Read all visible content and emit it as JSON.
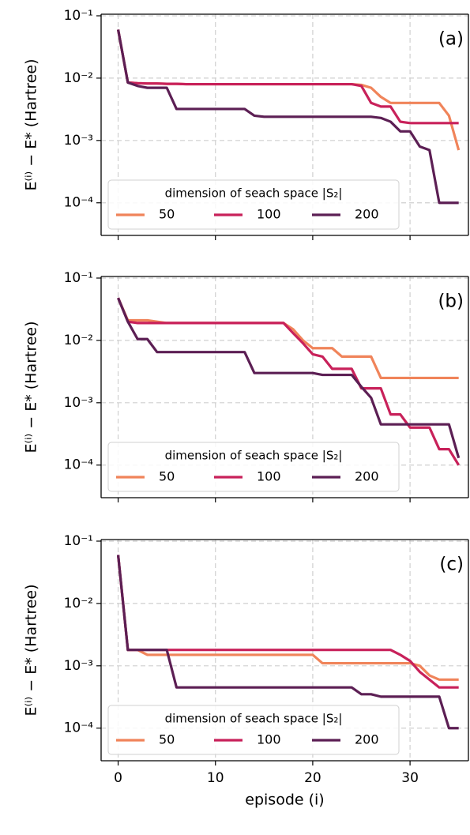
{
  "chart_data": [
    {
      "type": "line",
      "annotation": "(a)",
      "ylabel": "E⁽ⁱ⁾ − E* (Hartree)",
      "log_y": true,
      "grid": true,
      "legend": "lower left",
      "legend_title": "dimension of seach space |S₂|",
      "xticklabels": false,
      "xlim": [
        -1.75,
        36
      ],
      "xticks": [
        0,
        10,
        20,
        30
      ],
      "ylim": [
        3e-05,
        0.106
      ],
      "yticks": [
        {
          "value": 0.1,
          "label": "10⁻¹"
        },
        {
          "value": 0.01,
          "label": "10⁻²"
        },
        {
          "value": 0.001,
          "label": "10⁻³"
        },
        {
          "value": 0.0001,
          "label": "10⁻⁴"
        }
      ],
      "x": [
        0,
        1,
        2,
        3,
        4,
        5,
        6,
        7,
        8,
        9,
        10,
        11,
        12,
        13,
        14,
        15,
        16,
        17,
        18,
        19,
        20,
        21,
        22,
        23,
        24,
        25,
        26,
        27,
        28,
        29,
        30,
        31,
        32,
        33,
        34,
        35
      ],
      "series": [
        {
          "name": "50",
          "color": "#f0845a",
          "values": [
            0.06,
            0.0085,
            0.0083,
            0.0082,
            0.0082,
            0.0081,
            0.0081,
            0.008,
            0.008,
            0.008,
            0.008,
            0.008,
            0.008,
            0.008,
            0.008,
            0.008,
            0.008,
            0.008,
            0.008,
            0.008,
            0.008,
            0.008,
            0.008,
            0.008,
            0.008,
            0.0078,
            0.007,
            0.005,
            0.004,
            0.004,
            0.004,
            0.004,
            0.004,
            0.004,
            0.0025,
            0.0007
          ]
        },
        {
          "name": "100",
          "color": "#c8215a",
          "values": [
            0.06,
            0.0085,
            0.0083,
            0.0082,
            0.0082,
            0.0081,
            0.0081,
            0.008,
            0.008,
            0.008,
            0.008,
            0.008,
            0.008,
            0.008,
            0.008,
            0.008,
            0.008,
            0.008,
            0.008,
            0.008,
            0.008,
            0.008,
            0.008,
            0.008,
            0.008,
            0.0075,
            0.004,
            0.0035,
            0.0035,
            0.002,
            0.0019,
            0.0019,
            0.0019,
            0.0019,
            0.0019,
            0.0019
          ]
        },
        {
          "name": "200",
          "color": "#5c1f54",
          "values": [
            0.06,
            0.0085,
            0.0075,
            0.007,
            0.007,
            0.007,
            0.0032,
            0.0032,
            0.0032,
            0.0032,
            0.0032,
            0.0032,
            0.0032,
            0.0032,
            0.0025,
            0.0024,
            0.0024,
            0.0024,
            0.0024,
            0.0024,
            0.0024,
            0.0024,
            0.0024,
            0.0024,
            0.0024,
            0.0024,
            0.0024,
            0.0023,
            0.002,
            0.0014,
            0.0014,
            0.0008,
            0.0007,
            0.0001,
            0.0001,
            0.0001
          ]
        }
      ]
    },
    {
      "type": "line",
      "annotation": "(b)",
      "ylabel": "E⁽ⁱ⁾ − E* (Hartree)",
      "log_y": true,
      "grid": true,
      "legend": "lower left",
      "legend_title": "dimension of seach space |S₂|",
      "xticklabels": false,
      "xlim": [
        -1.75,
        36
      ],
      "xticks": [
        0,
        10,
        20,
        30
      ],
      "ylim": [
        3e-05,
        0.106
      ],
      "yticks": [
        {
          "value": 0.1,
          "label": "10⁻¹"
        },
        {
          "value": 0.01,
          "label": "10⁻²"
        },
        {
          "value": 0.001,
          "label": "10⁻³"
        },
        {
          "value": 0.0001,
          "label": "10⁻⁴"
        }
      ],
      "x": [
        0,
        1,
        2,
        3,
        4,
        5,
        6,
        7,
        8,
        9,
        10,
        11,
        12,
        13,
        14,
        15,
        16,
        17,
        18,
        19,
        20,
        21,
        22,
        23,
        24,
        25,
        26,
        27,
        28,
        29,
        30,
        31,
        32,
        33,
        34,
        35
      ],
      "series": [
        {
          "name": "50",
          "color": "#f0845a",
          "values": [
            0.048,
            0.021,
            0.021,
            0.021,
            0.02,
            0.019,
            0.019,
            0.019,
            0.019,
            0.019,
            0.019,
            0.019,
            0.019,
            0.019,
            0.019,
            0.019,
            0.019,
            0.019,
            0.015,
            0.01,
            0.0075,
            0.0075,
            0.0075,
            0.0055,
            0.0055,
            0.0055,
            0.0055,
            0.0025,
            0.0025,
            0.0025,
            0.0025,
            0.0025,
            0.0025,
            0.0025,
            0.0025,
            0.0025
          ]
        },
        {
          "name": "100",
          "color": "#c8215a",
          "values": [
            0.048,
            0.02,
            0.019,
            0.019,
            0.019,
            0.019,
            0.019,
            0.019,
            0.019,
            0.019,
            0.019,
            0.019,
            0.019,
            0.019,
            0.019,
            0.019,
            0.019,
            0.019,
            0.013,
            0.009,
            0.006,
            0.0055,
            0.0035,
            0.0035,
            0.0035,
            0.0017,
            0.0017,
            0.0017,
            0.00065,
            0.00065,
            0.0004,
            0.0004,
            0.0004,
            0.00018,
            0.00018,
            0.0001
          ]
        },
        {
          "name": "200",
          "color": "#5c1f54",
          "values": [
            0.048,
            0.02,
            0.0105,
            0.0105,
            0.0065,
            0.0065,
            0.0065,
            0.0065,
            0.0065,
            0.0065,
            0.0065,
            0.0065,
            0.0065,
            0.0065,
            0.003,
            0.003,
            0.003,
            0.003,
            0.003,
            0.003,
            0.003,
            0.0028,
            0.0028,
            0.0028,
            0.0028,
            0.0018,
            0.0012,
            0.00045,
            0.00045,
            0.00045,
            0.00045,
            0.00045,
            0.00045,
            0.00045,
            0.00045,
            0.00013
          ]
        }
      ]
    },
    {
      "type": "line",
      "annotation": "(c)",
      "ylabel": "E⁽ⁱ⁾ − E* (Hartree)",
      "xlabel": "episode (i)",
      "log_y": true,
      "grid": true,
      "legend": "lower left",
      "legend_title": "dimension of seach space |S₂|",
      "xticklabels": true,
      "xlim": [
        -1.75,
        36
      ],
      "xticks": [
        0,
        10,
        20,
        30
      ],
      "ylim": [
        3e-05,
        0.106
      ],
      "yticks": [
        {
          "value": 0.1,
          "label": "10⁻¹"
        },
        {
          "value": 0.01,
          "label": "10⁻²"
        },
        {
          "value": 0.001,
          "label": "10⁻³"
        },
        {
          "value": 0.0001,
          "label": "10⁻⁴"
        }
      ],
      "x": [
        0,
        1,
        2,
        3,
        4,
        5,
        6,
        7,
        8,
        9,
        10,
        11,
        12,
        13,
        14,
        15,
        16,
        17,
        18,
        19,
        20,
        21,
        22,
        23,
        24,
        25,
        26,
        27,
        28,
        29,
        30,
        31,
        32,
        33,
        34,
        35
      ],
      "series": [
        {
          "name": "50",
          "color": "#f0845a",
          "values": [
            0.06,
            0.0018,
            0.0018,
            0.0015,
            0.0015,
            0.0015,
            0.0015,
            0.0015,
            0.0015,
            0.0015,
            0.0015,
            0.0015,
            0.0015,
            0.0015,
            0.0015,
            0.0015,
            0.0015,
            0.0015,
            0.0015,
            0.0015,
            0.0015,
            0.0011,
            0.0011,
            0.0011,
            0.0011,
            0.0011,
            0.0011,
            0.0011,
            0.0011,
            0.0011,
            0.0011,
            0.001,
            0.0007,
            0.0006,
            0.0006,
            0.0006
          ]
        },
        {
          "name": "100",
          "color": "#c8215a",
          "values": [
            0.06,
            0.0018,
            0.0018,
            0.0018,
            0.0018,
            0.0018,
            0.0018,
            0.0018,
            0.0018,
            0.0018,
            0.0018,
            0.0018,
            0.0018,
            0.0018,
            0.0018,
            0.0018,
            0.0018,
            0.0018,
            0.0018,
            0.0018,
            0.0018,
            0.0018,
            0.0018,
            0.0018,
            0.0018,
            0.0018,
            0.0018,
            0.0018,
            0.0018,
            0.0015,
            0.0012,
            0.0008,
            0.0006,
            0.00045,
            0.00045,
            0.00045
          ]
        },
        {
          "name": "200",
          "color": "#5c1f54",
          "values": [
            0.06,
            0.0018,
            0.0018,
            0.0018,
            0.0018,
            0.0018,
            0.00045,
            0.00045,
            0.00045,
            0.00045,
            0.00045,
            0.00045,
            0.00045,
            0.00045,
            0.00045,
            0.00045,
            0.00045,
            0.00045,
            0.00045,
            0.00045,
            0.00045,
            0.00045,
            0.00045,
            0.00045,
            0.00045,
            0.00035,
            0.00035,
            0.00032,
            0.00032,
            0.00032,
            0.00032,
            0.00032,
            0.00032,
            0.00032,
            0.0001,
            0.0001
          ]
        }
      ]
    }
  ]
}
